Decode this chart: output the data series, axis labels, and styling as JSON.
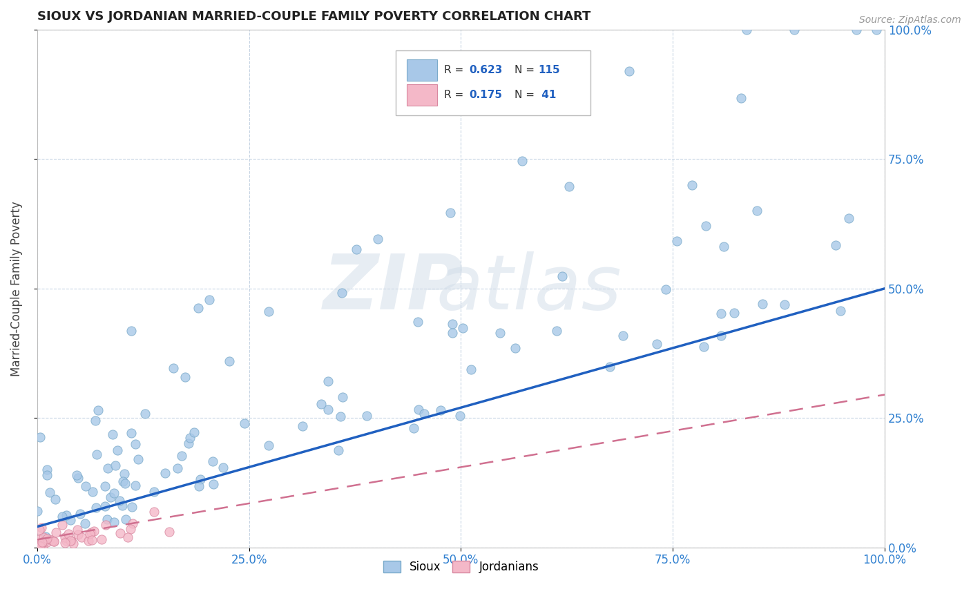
{
  "title": "SIOUX VS JORDANIAN MARRIED-COUPLE FAMILY POVERTY CORRELATION CHART",
  "source": "Source: ZipAtlas.com",
  "ylabel": "Married-Couple Family Poverty",
  "sioux_R": 0.623,
  "sioux_N": 115,
  "jordan_R": 0.175,
  "jordan_N": 41,
  "sioux_color": "#a8c8e8",
  "sioux_edge": "#7aaaca",
  "jordan_color": "#f4b8c8",
  "jordan_edge": "#d888a0",
  "trendline_sioux": "#2060c0",
  "trendline_jordan": "#d07090",
  "bg_color": "#ffffff",
  "grid_color": "#c0d0e0",
  "legend_R_color": "#2060c0",
  "tick_label_color": "#3080d0",
  "title_color": "#222222"
}
